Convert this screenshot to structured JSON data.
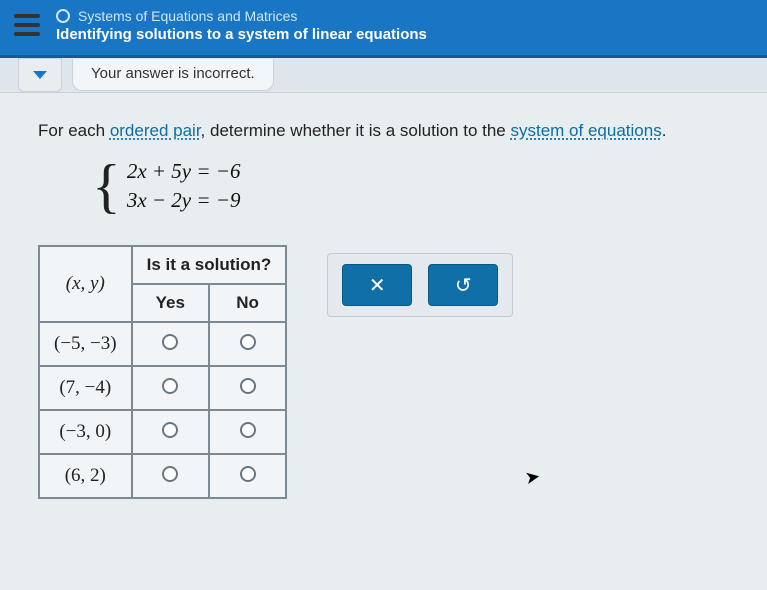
{
  "header": {
    "topic": "Systems of Equations and Matrices",
    "subtopic": "Identifying solutions to a system of linear equations",
    "bg_color": "#1976c4"
  },
  "feedback": {
    "message": "Your answer is incorrect."
  },
  "prompt": {
    "pre": "For each ",
    "link1": "ordered pair",
    "mid": ", determine whether it is a solution to the ",
    "link2": "system of equations",
    "post": "."
  },
  "system": {
    "eq1": "2x + 5y = −6",
    "eq2": "3x − 2y = −9"
  },
  "table": {
    "header_pair": "(x, y)",
    "header_span": "Is it a solution?",
    "col_yes": "Yes",
    "col_no": "No",
    "rows": [
      {
        "pair": "(−5, −3)"
      },
      {
        "pair": "(7, −4)"
      },
      {
        "pair": "(−3, 0)"
      },
      {
        "pair": "(6, 2)"
      }
    ]
  },
  "buttons": {
    "close_glyph": "✕",
    "reset_glyph": "↺",
    "btn_color": "#0f6fa6"
  }
}
